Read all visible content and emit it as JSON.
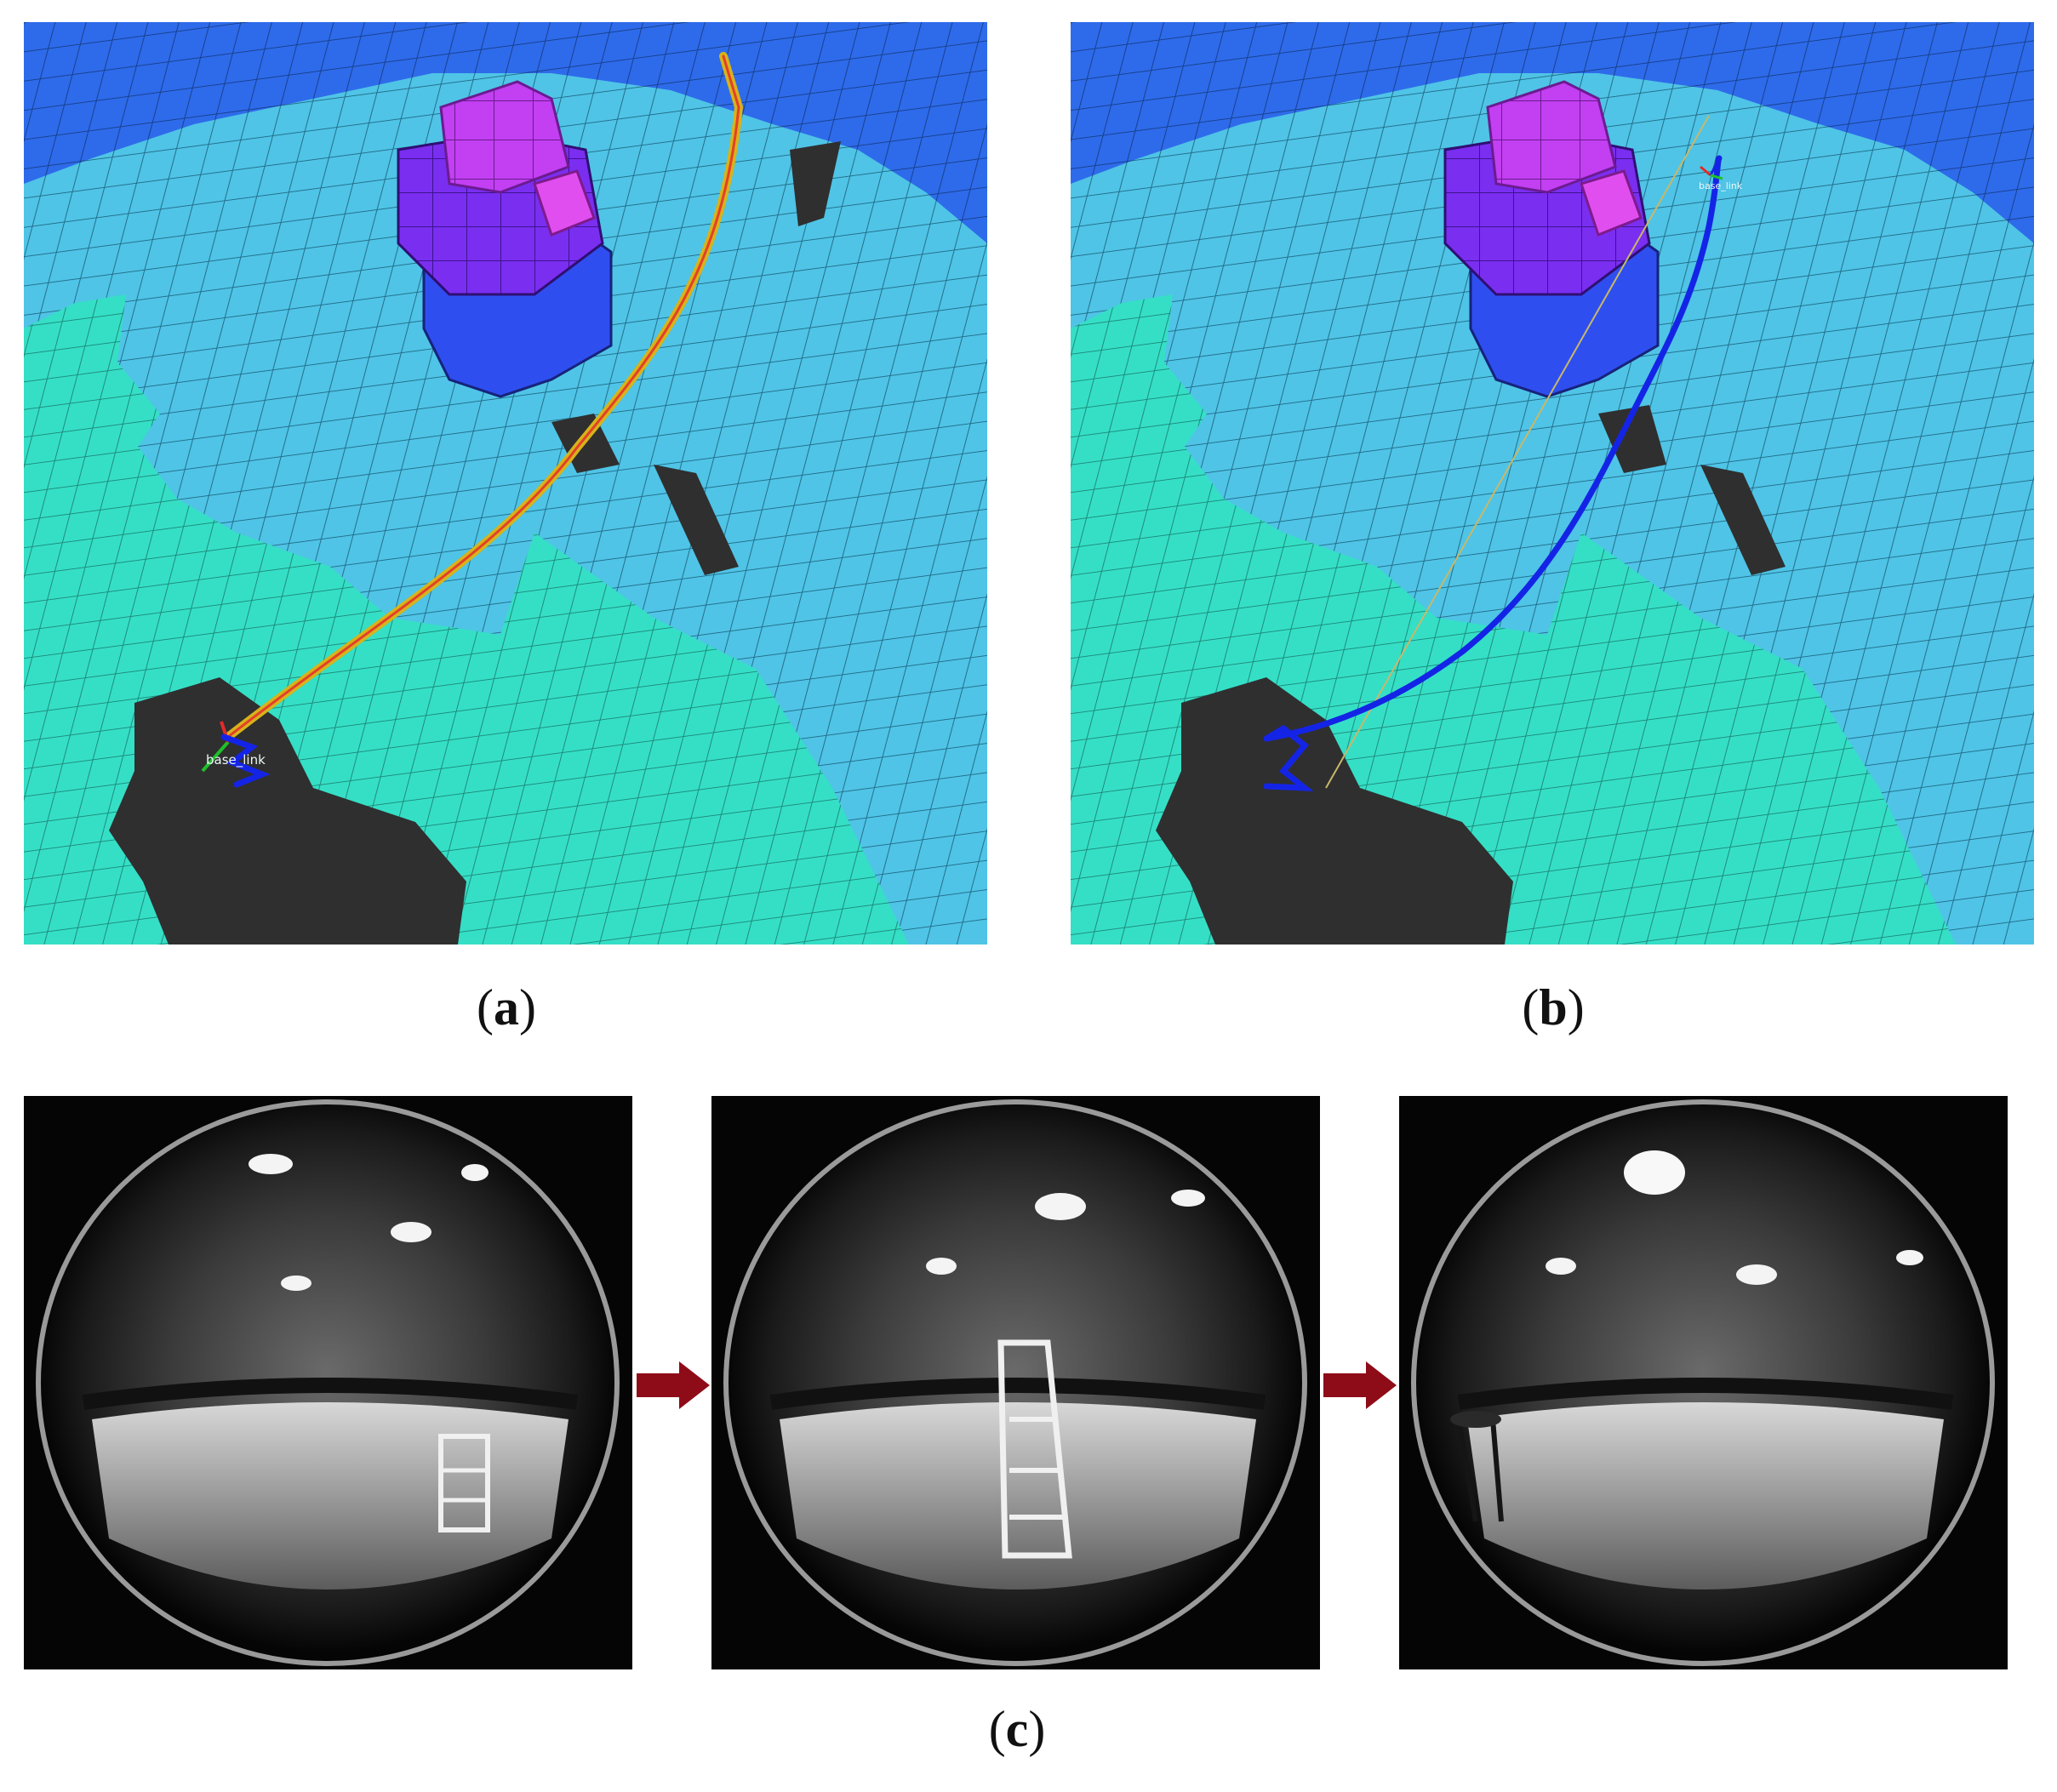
{
  "panels": {
    "a": {
      "caption_letter": "a",
      "frame_label": "base_link"
    },
    "b": {
      "caption_letter": "b",
      "frame_label": "base_link"
    },
    "c": {
      "caption_letter": "c"
    }
  },
  "colors": {
    "floor_cell": "#35dfc6",
    "low_cube": "#4fc4e6",
    "high_cube": "#2e6bea",
    "obstacle_purple": "#8a2cf0",
    "obstacle_magenta": "#c23ff2",
    "free_space": "#2f2f2f",
    "trajectory_a": "#d7b31a",
    "trajectory_a_core": "#e3402a",
    "trajectory_b": "#1424e6",
    "arrow": "#8e0c18"
  },
  "icons": [
    "robot-frame-icon",
    "right-arrow-icon"
  ]
}
